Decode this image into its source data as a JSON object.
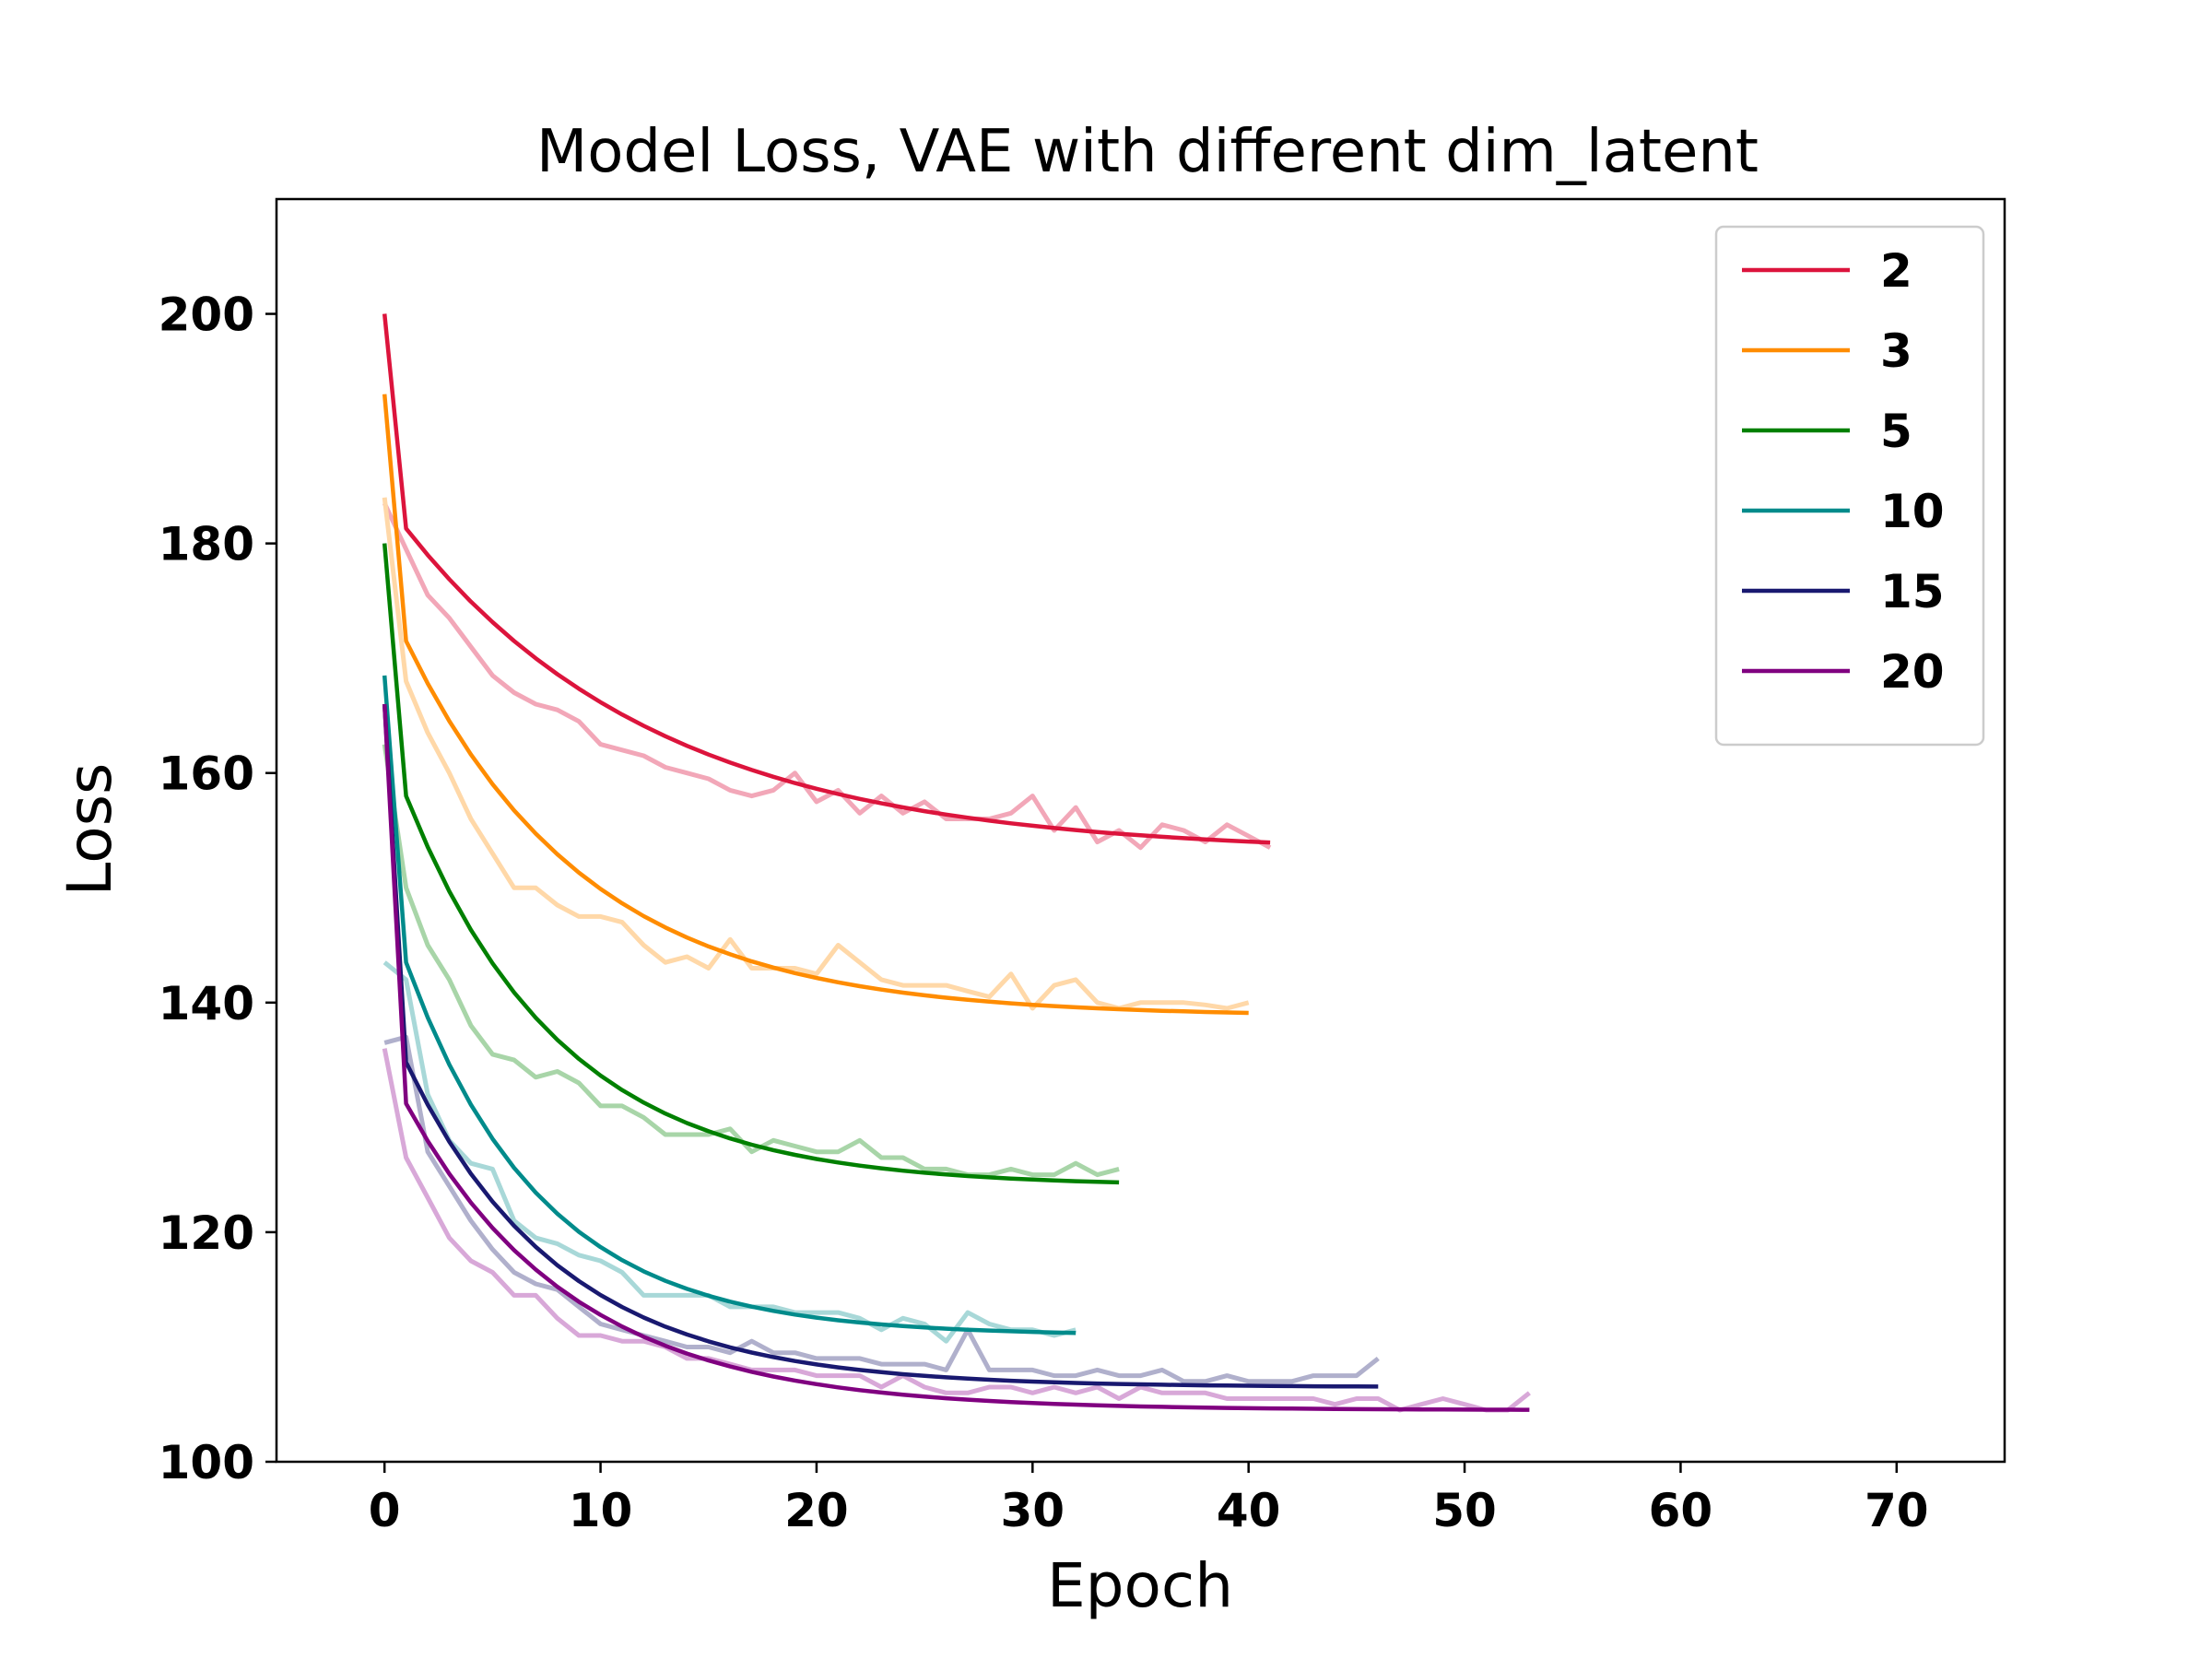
{
  "chart_data": {
    "type": "line",
    "title": "Model Loss, VAE with different dim_latent",
    "xlabel": "Epoch",
    "ylabel": "Loss",
    "xlim": [
      -5,
      75
    ],
    "ylim": [
      100,
      210
    ],
    "xticks": [
      0,
      10,
      20,
      30,
      40,
      50,
      60,
      70
    ],
    "yticks": [
      100,
      120,
      140,
      160,
      180,
      200
    ],
    "grid": false,
    "legend_position": "top-right",
    "series": [
      {
        "name": "2",
        "color": "#dc143c",
        "raw_color": "#f2a7b8",
        "epochs": 41,
        "smooth": {
          "start": 200.0,
          "second": 181.3,
          "final": 153.0,
          "rate": 0.085
        },
        "raw": [
          183.5,
          179.5,
          175.5,
          173.5,
          171.0,
          168.5,
          167.0,
          166.0,
          165.5,
          164.5,
          162.5,
          162.0,
          161.5,
          160.5,
          160.0,
          159.5,
          158.5,
          158.0,
          158.5,
          160.0,
          157.5,
          158.5,
          156.5,
          158.0,
          156.5,
          157.5,
          156.0,
          156.0,
          156.0,
          156.5,
          158.0,
          155.0,
          157.0,
          154.0,
          155.0,
          153.5,
          155.5,
          155.0,
          154.0,
          155.5,
          154.5,
          153.5
        ]
      },
      {
        "name": "3",
        "color": "#ff8c00",
        "raw_color": "#ffd8a8",
        "epochs": 40,
        "smooth": {
          "start": 193.0,
          "second": 171.5,
          "final": 138.8,
          "rate": 0.12
        },
        "raw": [
          184.0,
          168.0,
          163.5,
          160.0,
          156.0,
          153.0,
          150.0,
          150.0,
          148.5,
          147.5,
          147.5,
          147.0,
          145.0,
          143.5,
          144.0,
          143.0,
          145.5,
          143.0,
          143.0,
          143.0,
          142.5,
          145.0,
          143.5,
          142.0,
          141.5,
          141.5,
          141.5,
          141.0,
          140.5,
          142.5,
          139.5,
          141.5,
          142.0,
          140.0,
          139.5,
          140.0,
          140.0,
          140.0,
          139.8,
          139.5,
          140.0
        ]
      },
      {
        "name": "5",
        "color": "#008000",
        "raw_color": "#a8d5a8",
        "epochs": 34,
        "smooth": {
          "start": 180.0,
          "second": 158.0,
          "final": 124.0,
          "rate": 0.14
        },
        "raw": [
          162.5,
          150.0,
          145.0,
          142.0,
          138.0,
          135.5,
          135.0,
          133.5,
          134.0,
          133.0,
          131.0,
          131.0,
          130.0,
          128.5,
          128.5,
          128.5,
          129.0,
          127.0,
          128.0,
          127.5,
          127.0,
          127.0,
          128.0,
          126.5,
          126.5,
          125.5,
          125.5,
          125.0,
          125.0,
          125.5,
          125.0,
          125.0,
          126.0,
          125.0,
          125.5
        ]
      },
      {
        "name": "10",
        "color": "#008b8b",
        "raw_color": "#a8d8d8",
        "epochs": 32,
        "smooth": {
          "start": 168.5,
          "second": 143.5,
          "final": 111.0,
          "rate": 0.16
        },
        "raw": [
          143.5,
          142.0,
          132.0,
          128.0,
          126.0,
          125.5,
          121.0,
          119.5,
          119.0,
          118.0,
          117.5,
          116.5,
          114.5,
          114.5,
          114.5,
          114.5,
          113.5,
          113.5,
          113.5,
          113.0,
          113.0,
          113.0,
          112.5,
          111.5,
          112.5,
          112.0,
          110.5,
          113.0,
          112.0,
          111.5,
          111.5,
          111.0,
          111.5
        ]
      },
      {
        "name": "15",
        "color": "#191970",
        "raw_color": "#b0b0cc",
        "epochs": 46,
        "smooth": {
          "start": 166.0,
          "second": 134.8,
          "final": 106.5,
          "rate": 0.14
        },
        "raw": [
          136.5,
          137.0,
          127.0,
          124.0,
          121.0,
          118.5,
          116.5,
          115.5,
          115.0,
          113.5,
          112.0,
          111.5,
          111.0,
          110.5,
          110.0,
          110.0,
          109.5,
          110.5,
          109.5,
          109.5,
          109.0,
          109.0,
          109.0,
          108.5,
          108.5,
          108.5,
          108.0,
          111.5,
          108.0,
          108.0,
          108.0,
          107.5,
          107.5,
          108.0,
          107.5,
          107.5,
          108.0,
          107.0,
          107.0,
          107.5,
          107.0,
          107.0,
          107.0,
          107.5,
          107.5,
          107.5,
          109.0
        ]
      },
      {
        "name": "20",
        "color": "#800080",
        "raw_color": "#d8a8d8",
        "epochs": 53,
        "smooth": {
          "start": 166.0,
          "second": 131.2,
          "final": 104.5,
          "rate": 0.13
        },
        "raw": [
          136.0,
          126.5,
          123.0,
          119.5,
          117.5,
          116.5,
          114.5,
          114.5,
          112.5,
          111.0,
          111.0,
          110.5,
          110.5,
          110.0,
          109.0,
          109.0,
          108.5,
          108.0,
          108.0,
          108.0,
          107.5,
          107.5,
          107.5,
          106.5,
          107.5,
          106.5,
          106.0,
          106.0,
          106.5,
          106.5,
          106.0,
          106.5,
          106.0,
          106.5,
          105.5,
          106.5,
          106.0,
          106.0,
          106.0,
          105.5,
          105.5,
          105.5,
          105.5,
          105.5,
          105.0,
          105.5,
          105.5,
          104.5,
          105.0,
          105.5,
          105.0,
          104.5,
          104.5,
          106.0
        ]
      }
    ]
  }
}
